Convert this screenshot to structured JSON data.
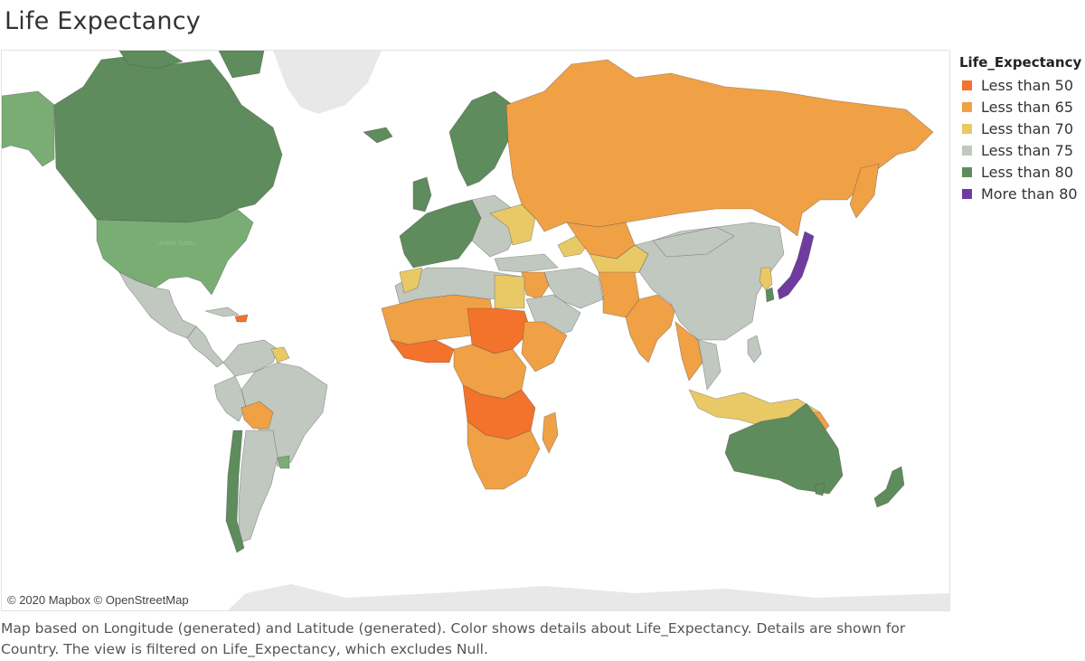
{
  "title": "Life Expectancy",
  "legend": {
    "title": "Life_Expectancy",
    "items": [
      {
        "label": "Less than 50",
        "color": "#f3722c"
      },
      {
        "label": "Less than 65",
        "color": "#f0a045"
      },
      {
        "label": "Less than 70",
        "color": "#e8c966"
      },
      {
        "label": "Less than 75",
        "color": "#c0c8c0"
      },
      {
        "label": "Less than 80",
        "color": "#5e8c5c"
      },
      {
        "label": "More than 80",
        "color": "#6f3ba0"
      }
    ]
  },
  "map": {
    "attribution": "© 2020 Mapbox © OpenStreetMap",
    "country_label": "United States",
    "colors": {
      "lt50": "#f3722c",
      "lt65": "#f0a045",
      "lt70": "#e8c966",
      "lt75": "#c0c8c0",
      "lt80_dark": "#5e8c5c",
      "lt80_light": "#79ad74",
      "gt80": "#6f3ba0",
      "basemap": "#e8e8e8"
    }
  },
  "caption": "Map based on Longitude (generated) and Latitude (generated).  Color shows details about Life_Expectancy.  Details are shown for Country. The view is filtered on Life_Expectancy, which excludes Null."
}
